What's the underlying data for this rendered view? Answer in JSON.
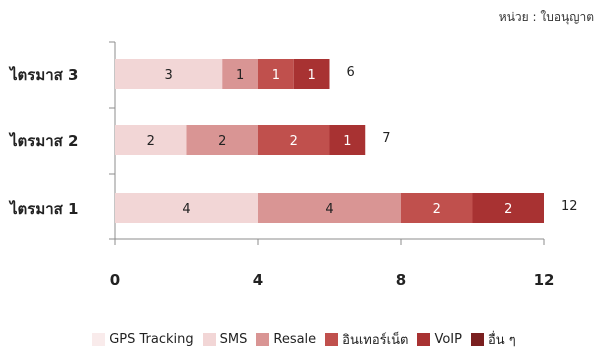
{
  "unit_note": "หน่วย : ใบอนุญาต",
  "chart_data": {
    "type": "bar",
    "orientation": "horizontal",
    "stacked": true,
    "categories": [
      "ไตรมาส 1",
      "ไตรมาส 2",
      "ไตรมาส 3"
    ],
    "series": [
      {
        "name": "GPS Tracking",
        "values": [
          0,
          0,
          0
        ],
        "color": "#f9ebeb"
      },
      {
        "name": "SMS",
        "values": [
          4,
          2,
          3
        ],
        "color": "#f2d6d6"
      },
      {
        "name": "Resale",
        "values": [
          4,
          2,
          1
        ],
        "color": "#d99594"
      },
      {
        "name": "อินเทอร์เน็ต",
        "values": [
          2,
          2,
          1
        ],
        "color": "#c0504d"
      },
      {
        "name": "VoIP",
        "values": [
          2,
          1,
          1
        ],
        "color": "#a83232"
      },
      {
        "name": "อื่น ๆ",
        "values": [
          0,
          0,
          0
        ],
        "color": "#7a1f1f"
      }
    ],
    "segment_labels": [
      [
        "4",
        "4",
        "2",
        "2"
      ],
      [
        "2",
        "2",
        "2",
        "1"
      ],
      [
        "3",
        "1",
        "1",
        "1"
      ]
    ],
    "totals": [
      "12",
      "7",
      "6"
    ],
    "xlim": [
      0,
      12
    ],
    "xticks": [
      "0",
      "4",
      "8",
      "12"
    ],
    "grid": false,
    "legend_position": "bottom"
  }
}
